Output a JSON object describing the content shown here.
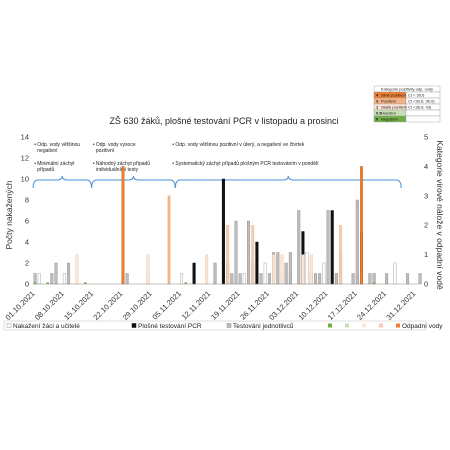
{
  "chart_data": {
    "type": "bar",
    "title": "ZŠ 630 žáků, plošné testování PCR v listopadu a prosinci",
    "ylabel": "Počty nakažených",
    "y2label": "Kategorie virové nálože v odpadní vodě",
    "ylim": [
      0,
      14
    ],
    "y_ticks": [
      0,
      2,
      4,
      6,
      8,
      10,
      12,
      14
    ],
    "y2lim": [
      0,
      5
    ],
    "y2_ticks": [
      0,
      1,
      2,
      3,
      4,
      5
    ],
    "x_tick_labels": [
      "01.10.2021",
      "08.10.2021",
      "15.10.2021",
      "22.10.2021",
      "29.10.2021",
      "05.11.2021",
      "12.11.2021",
      "19.11.2021",
      "26.11.2021",
      "03.12.2021",
      "10.12.2021",
      "17.12.2021",
      "24.12.2021",
      "31.12.2021"
    ],
    "grid": false,
    "legend_position": "bottom",
    "colors": {
      "nakazeni": "#ffffff",
      "pcr": "#111111",
      "individualni": "#bdbdbd",
      "odpadni": "#ed7d31",
      "w0": "#70ad47",
      "w05": "#c6e0b4",
      "w1": "#fbe5d6",
      "w2": "#f8cbad",
      "w3": "#f4b183",
      "w4": "#ed7d31",
      "brace": "#4a90d9"
    },
    "series": [
      {
        "name": "Nakažení žáci a učitelé",
        "values": [
          [
            1,
            1
          ],
          [
            7,
            1
          ],
          [
            21,
            1
          ],
          [
            27,
            1
          ],
          [
            35,
            1
          ],
          [
            46,
            2
          ],
          [
            50,
            1
          ],
          [
            55,
            2
          ],
          [
            59,
            1
          ],
          [
            61,
            1
          ],
          [
            65,
            3
          ],
          [
            69,
            2
          ],
          [
            72,
            1
          ],
          [
            77,
            1
          ],
          [
            81,
            1
          ],
          [
            86,
            2
          ]
        ]
      },
      {
        "name": "Plošné testování PCR",
        "values": [
          [
            38,
            2
          ],
          [
            45,
            10
          ],
          [
            53,
            4
          ],
          [
            64,
            5
          ],
          [
            71,
            7
          ],
          [
            78,
            5
          ]
        ]
      },
      {
        "name": "Testování jednotlivců",
        "values": [
          [
            0,
            1
          ],
          [
            4,
            1
          ],
          [
            5,
            2
          ],
          [
            8,
            2
          ],
          [
            22,
            1
          ],
          [
            43,
            2
          ],
          [
            46,
            2
          ],
          [
            47,
            1
          ],
          [
            48,
            6
          ],
          [
            49,
            1
          ],
          [
            51,
            6
          ],
          [
            52,
            2
          ],
          [
            54,
            1
          ],
          [
            56,
            1
          ],
          [
            57,
            3
          ],
          [
            58,
            3
          ],
          [
            60,
            2
          ],
          [
            61,
            3
          ],
          [
            63,
            7
          ],
          [
            66,
            1
          ],
          [
            67,
            1
          ],
          [
            68,
            1
          ],
          [
            70,
            7
          ],
          [
            72,
            1
          ],
          [
            73,
            3
          ],
          [
            76,
            1
          ],
          [
            77,
            8
          ],
          [
            78,
            1
          ],
          [
            80,
            1
          ],
          [
            81,
            1
          ],
          [
            84,
            1
          ],
          [
            89,
            1
          ],
          [
            92,
            1
          ]
        ]
      },
      {
        "name": "Odpadní vody",
        "values": [
          [
            0,
            0
          ],
          [
            3,
            0
          ],
          [
            10,
            1
          ],
          [
            12,
            0
          ],
          [
            21,
            4
          ],
          [
            27,
            1
          ],
          [
            32,
            3
          ],
          [
            36,
            0
          ],
          [
            41,
            1
          ],
          [
            46,
            2
          ],
          [
            52,
            2
          ],
          [
            57,
            1
          ],
          [
            59,
            1
          ],
          [
            64,
            1
          ],
          [
            66,
            1
          ],
          [
            73,
            2
          ],
          [
            78,
            4
          ],
          [
            81,
            0
          ]
        ]
      }
    ],
    "annotations": [
      {
        "lines": [
          "Odp. vody většinou",
          "negativní"
        ],
        "x": 1
      },
      {
        "lines": [
          "Minimální záchyt",
          "případů"
        ],
        "x": 1
      },
      {
        "lines": [
          "Odp. vody vysoce",
          "pozitivní"
        ],
        "x": 15
      },
      {
        "lines": [
          "Náhodný záchyt případů",
          "individuálními testy"
        ],
        "x": 15
      },
      {
        "lines": [
          "Odp. vody většinou pozitivní v úterý, a negativní ve čtvrtek"
        ],
        "x": 34
      },
      {
        "lines": [
          "Systematický záchyt případů plošným PCR testováním v pondělí"
        ],
        "x": 34
      }
    ],
    "braces": [
      [
        0,
        13
      ],
      [
        14,
        33
      ],
      [
        34,
        87
      ]
    ],
    "inset": {
      "title": "Kategorie pozitivity odp. vody",
      "rows": [
        {
          "code": "4",
          "label": "Silně pozitivní",
          "range": "Ct < 30,6",
          "color": "#ed7d31"
        },
        {
          "code": "3",
          "label": "Pozitivní",
          "range": "Ct <30,6; 36,0)",
          "color": "#f4b183"
        },
        {
          "code": "1",
          "label": "Slabě pozitivní",
          "range": "Ct <36,0; 43)",
          "color": "#fbe5d6"
        },
        {
          "code": "0.5",
          "label": "Hraniční",
          "range": "",
          "color": "#c6e0b4"
        },
        {
          "code": "0",
          "label": "Negativní",
          "range": "",
          "color": "#70ad47"
        }
      ]
    },
    "legend": [
      {
        "label": "Nakažení žáci a učitelé",
        "swatch": "white"
      },
      {
        "label": "Plošné testování PCR",
        "swatch": "pcr"
      },
      {
        "label": "Testování jednotlivců",
        "swatch": "individualni"
      },
      {
        "label": "",
        "swatch": "w0"
      },
      {
        "label": "",
        "swatch": "w05"
      },
      {
        "label": "",
        "swatch": "w1"
      },
      {
        "label": "",
        "swatch": "w2"
      },
      {
        "label": "Odpadní vody",
        "swatch": "w4"
      }
    ]
  }
}
